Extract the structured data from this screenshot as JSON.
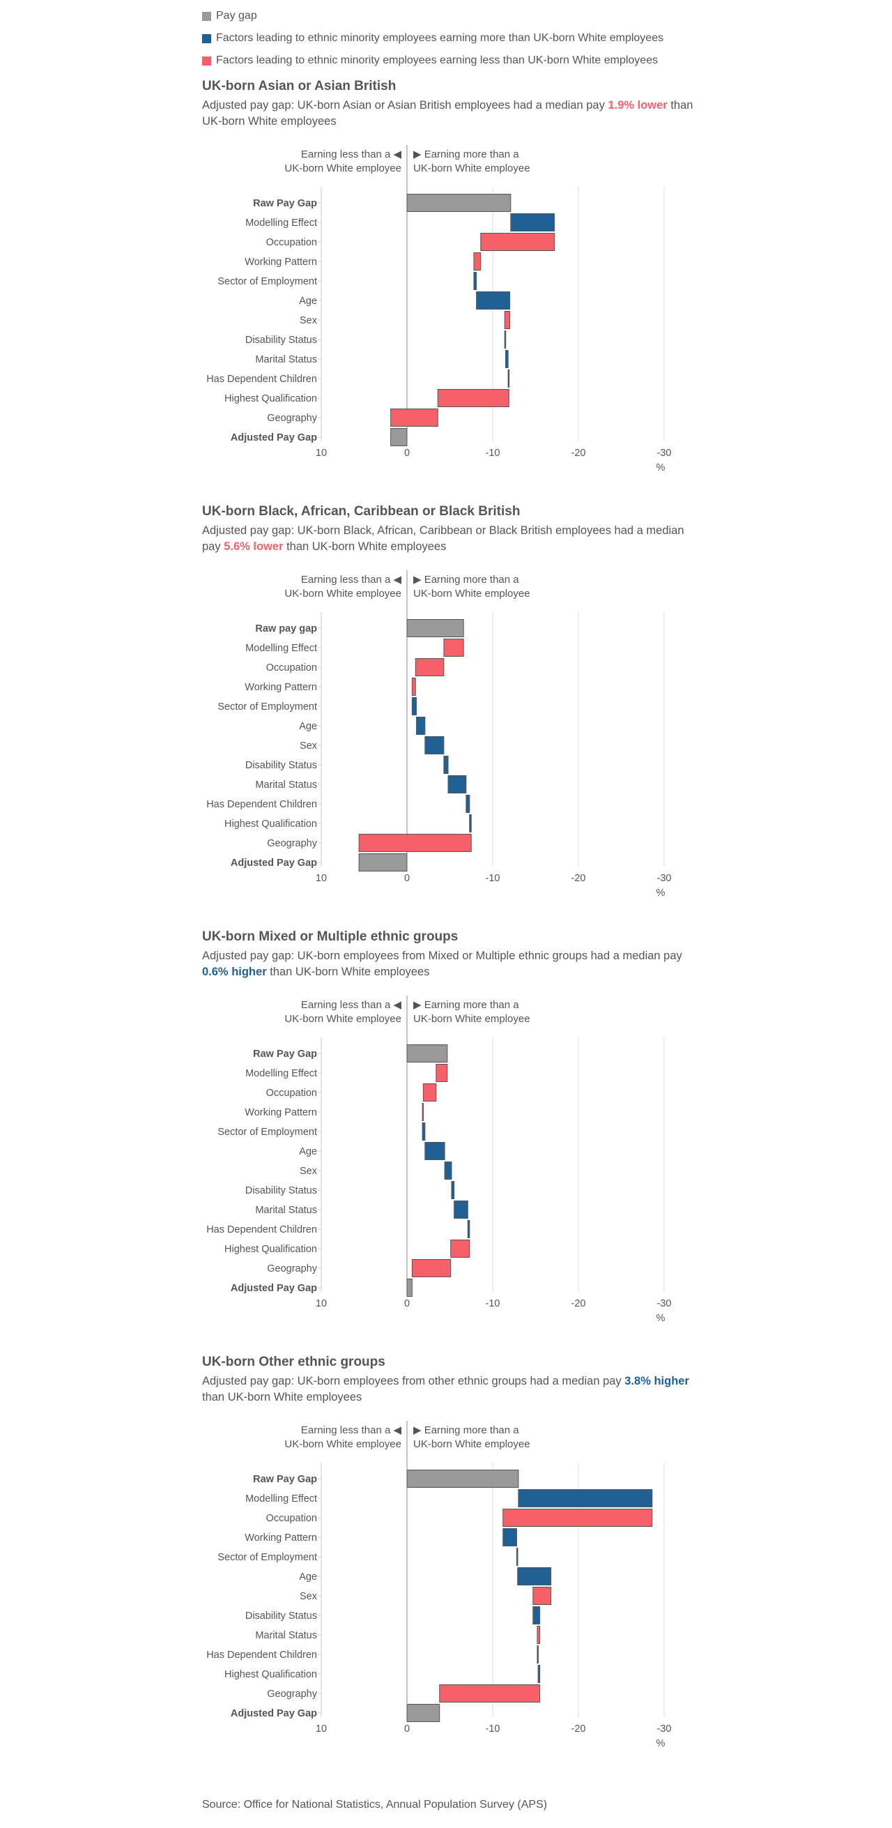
{
  "legend": [
    {
      "label": "Pay gap",
      "color": "#999999"
    },
    {
      "label": "Factors leading to ethnic minority employees earning more than UK-born White employees",
      "color": "#206095"
    },
    {
      "label": "Factors leading to ethnic minority employees earning less than UK-born White employees",
      "color": "#F66068"
    }
  ],
  "colors": {
    "gap": "#999999",
    "more": "#206095",
    "less": "#F66068",
    "text": "#555555",
    "grid": "#dddddd",
    "axis": "#888888"
  },
  "direction_left": [
    "Earning less than a ◀",
    "UK-born White employee"
  ],
  "direction_right": [
    "▶ Earning more than a",
    "UK-born White employee"
  ],
  "axis_unit": "%",
  "axis_ticks": [
    10,
    0,
    -10,
    -20,
    -30
  ],
  "source": "Source: Office for National Statistics, Annual Population Survey (APS)",
  "chart_data": [
    {
      "type": "bar",
      "title": "UK-born Asian or Asian British",
      "subtitle_parts": [
        {
          "text": "Adjusted pay gap: UK-born Asian or Asian British employees had a median pay "
        },
        {
          "text": "1.9% lower",
          "color": "#F66068"
        },
        {
          "text": " than UK-born White employees"
        }
      ],
      "xlim": [
        10,
        -30
      ],
      "xlabel": "%",
      "categories": [
        "Raw Pay Gap",
        "Modelling Effect",
        "Occupation",
        "Working Pattern",
        "Sector of Employment",
        "Age",
        "Sex",
        "Disability Status",
        "Marital Status",
        "Has Dependent Children",
        "Highest Qualification",
        "Geography",
        "Adjusted Pay Gap"
      ],
      "bold": [
        0,
        12
      ],
      "bars": [
        {
          "from": 0,
          "to": -12.1,
          "kind": "gap"
        },
        {
          "from": -12.1,
          "to": -17.2,
          "kind": "more"
        },
        {
          "from": -17.2,
          "to": -8.6,
          "kind": "less"
        },
        {
          "from": -8.6,
          "to": -7.8,
          "kind": "less"
        },
        {
          "from": -7.8,
          "to": -8.1,
          "kind": "more"
        },
        {
          "from": -8.1,
          "to": -12.0,
          "kind": "more"
        },
        {
          "from": -12.0,
          "to": -11.4,
          "kind": "less"
        },
        {
          "from": -11.4,
          "to": -11.5,
          "kind": "more"
        },
        {
          "from": -11.5,
          "to": -11.8,
          "kind": "more"
        },
        {
          "from": -11.8,
          "to": -11.9,
          "kind": "more"
        },
        {
          "from": -11.9,
          "to": -3.6,
          "kind": "less"
        },
        {
          "from": -3.6,
          "to": 1.9,
          "kind": "less"
        },
        {
          "from": 0,
          "to": 1.9,
          "kind": "gap"
        }
      ]
    },
    {
      "type": "bar",
      "title": "UK-born Black, African, Caribbean or Black British",
      "subtitle_parts": [
        {
          "text": "Adjusted pay gap: UK-born Black, African, Caribbean or Black British employees had a median pay "
        },
        {
          "text": "5.6% lower",
          "color": "#F66068"
        },
        {
          "text": " than UK-born White employees"
        }
      ],
      "xlim": [
        10,
        -30
      ],
      "xlabel": "%",
      "categories": [
        "Raw pay gap",
        "Modelling Effect",
        "Occupation",
        "Working Pattern",
        "Sector of Employment",
        "Age",
        "Sex",
        "Disability Status",
        "Marital Status",
        "Has Dependent Children",
        "Highest Qualification",
        "Geography",
        "Adjusted Pay Gap"
      ],
      "bold": [
        0,
        12
      ],
      "bars": [
        {
          "from": 0,
          "to": -6.6,
          "kind": "gap"
        },
        {
          "from": -6.6,
          "to": -4.3,
          "kind": "less"
        },
        {
          "from": -4.3,
          "to": -1.0,
          "kind": "less"
        },
        {
          "from": -1.0,
          "to": -0.6,
          "kind": "less"
        },
        {
          "from": -0.6,
          "to": -1.1,
          "kind": "more"
        },
        {
          "from": -1.1,
          "to": -2.1,
          "kind": "more"
        },
        {
          "from": -2.1,
          "to": -4.3,
          "kind": "more"
        },
        {
          "from": -4.3,
          "to": -4.8,
          "kind": "more"
        },
        {
          "from": -4.8,
          "to": -6.9,
          "kind": "more"
        },
        {
          "from": -6.9,
          "to": -7.3,
          "kind": "more"
        },
        {
          "from": -7.3,
          "to": -7.5,
          "kind": "more"
        },
        {
          "from": -7.5,
          "to": 5.6,
          "kind": "less"
        },
        {
          "from": 0,
          "to": 5.6,
          "kind": "gap"
        }
      ]
    },
    {
      "type": "bar",
      "title": "UK-born Mixed or Multiple ethnic groups",
      "subtitle_parts": [
        {
          "text": "Adjusted pay gap: UK-born employees from Mixed or Multiple ethnic groups had a median pay "
        },
        {
          "text": "0.6% higher",
          "color": "#206095"
        },
        {
          "text": " than UK-born White employees"
        }
      ],
      "xlim": [
        10,
        -30
      ],
      "xlabel": "%",
      "categories": [
        "Raw Pay Gap",
        "Modelling Effect",
        "Occupation",
        "Working Pattern",
        "Sector of Employment",
        "Age",
        "Sex",
        "Disability Status",
        "Marital Status",
        "Has Dependent Children",
        "Highest Qualification",
        "Geography",
        "Adjusted Pay Gap"
      ],
      "bold": [
        0,
        12
      ],
      "bars": [
        {
          "from": 0,
          "to": -4.7,
          "kind": "gap"
        },
        {
          "from": -4.7,
          "to": -3.4,
          "kind": "less"
        },
        {
          "from": -3.4,
          "to": -1.9,
          "kind": "less"
        },
        {
          "from": -1.9,
          "to": -1.8,
          "kind": "less"
        },
        {
          "from": -1.8,
          "to": -2.1,
          "kind": "more"
        },
        {
          "from": -2.1,
          "to": -4.4,
          "kind": "more"
        },
        {
          "from": -4.4,
          "to": -5.2,
          "kind": "more"
        },
        {
          "from": -5.2,
          "to": -5.5,
          "kind": "more"
        },
        {
          "from": -5.5,
          "to": -7.1,
          "kind": "more"
        },
        {
          "from": -7.1,
          "to": -7.3,
          "kind": "more"
        },
        {
          "from": -7.3,
          "to": -5.1,
          "kind": "less"
        },
        {
          "from": -5.1,
          "to": -0.6,
          "kind": "less"
        },
        {
          "from": 0,
          "to": -0.6,
          "kind": "gap"
        }
      ]
    },
    {
      "type": "bar",
      "title": "UK-born Other ethnic groups",
      "subtitle_parts": [
        {
          "text": "Adjusted pay gap: UK-born employees from other ethnic groups had a median pay "
        },
        {
          "text": "3.8% higher",
          "color": "#206095"
        },
        {
          "text": " than UK-born White employees"
        }
      ],
      "xlim": [
        10,
        -30
      ],
      "xlabel": "%",
      "categories": [
        "Raw Pay Gap",
        "Modelling Effect",
        "Occupation",
        "Working Pattern",
        "Sector of Employment",
        "Age",
        "Sex",
        "Disability Status",
        "Marital Status",
        "Has Dependent Children",
        "Highest Qualification",
        "Geography",
        "Adjusted Pay Gap"
      ],
      "bold": [
        0,
        12
      ],
      "bars": [
        {
          "from": 0,
          "to": -13.0,
          "kind": "gap"
        },
        {
          "from": -13.0,
          "to": -28.6,
          "kind": "more"
        },
        {
          "from": -28.6,
          "to": -11.2,
          "kind": "less"
        },
        {
          "from": -11.2,
          "to": -12.8,
          "kind": "more"
        },
        {
          "from": -12.8,
          "to": -12.9,
          "kind": "more"
        },
        {
          "from": -12.9,
          "to": -16.8,
          "kind": "more"
        },
        {
          "from": -16.8,
          "to": -14.7,
          "kind": "less"
        },
        {
          "from": -14.7,
          "to": -15.5,
          "kind": "more"
        },
        {
          "from": -15.5,
          "to": -15.2,
          "kind": "less"
        },
        {
          "from": -15.2,
          "to": -15.3,
          "kind": "more"
        },
        {
          "from": -15.3,
          "to": -15.5,
          "kind": "more"
        },
        {
          "from": -15.5,
          "to": -3.8,
          "kind": "less"
        },
        {
          "from": 0,
          "to": -3.8,
          "kind": "gap"
        }
      ]
    }
  ]
}
